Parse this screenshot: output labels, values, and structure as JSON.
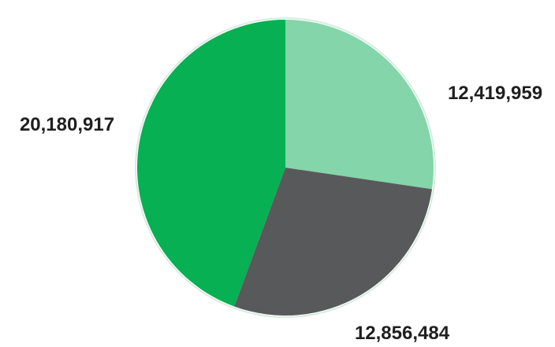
{
  "chart_data": {
    "type": "pie",
    "start_angle_deg": 0,
    "direction": "clockwise",
    "slices": [
      {
        "value": 12419959,
        "label": "12,419,959",
        "color": "#84d5aa"
      },
      {
        "value": 12856484,
        "label": "12,856,484",
        "color": "#58595b"
      },
      {
        "value": 20180917,
        "label": "20,180,917",
        "color": "#07b052"
      }
    ]
  }
}
